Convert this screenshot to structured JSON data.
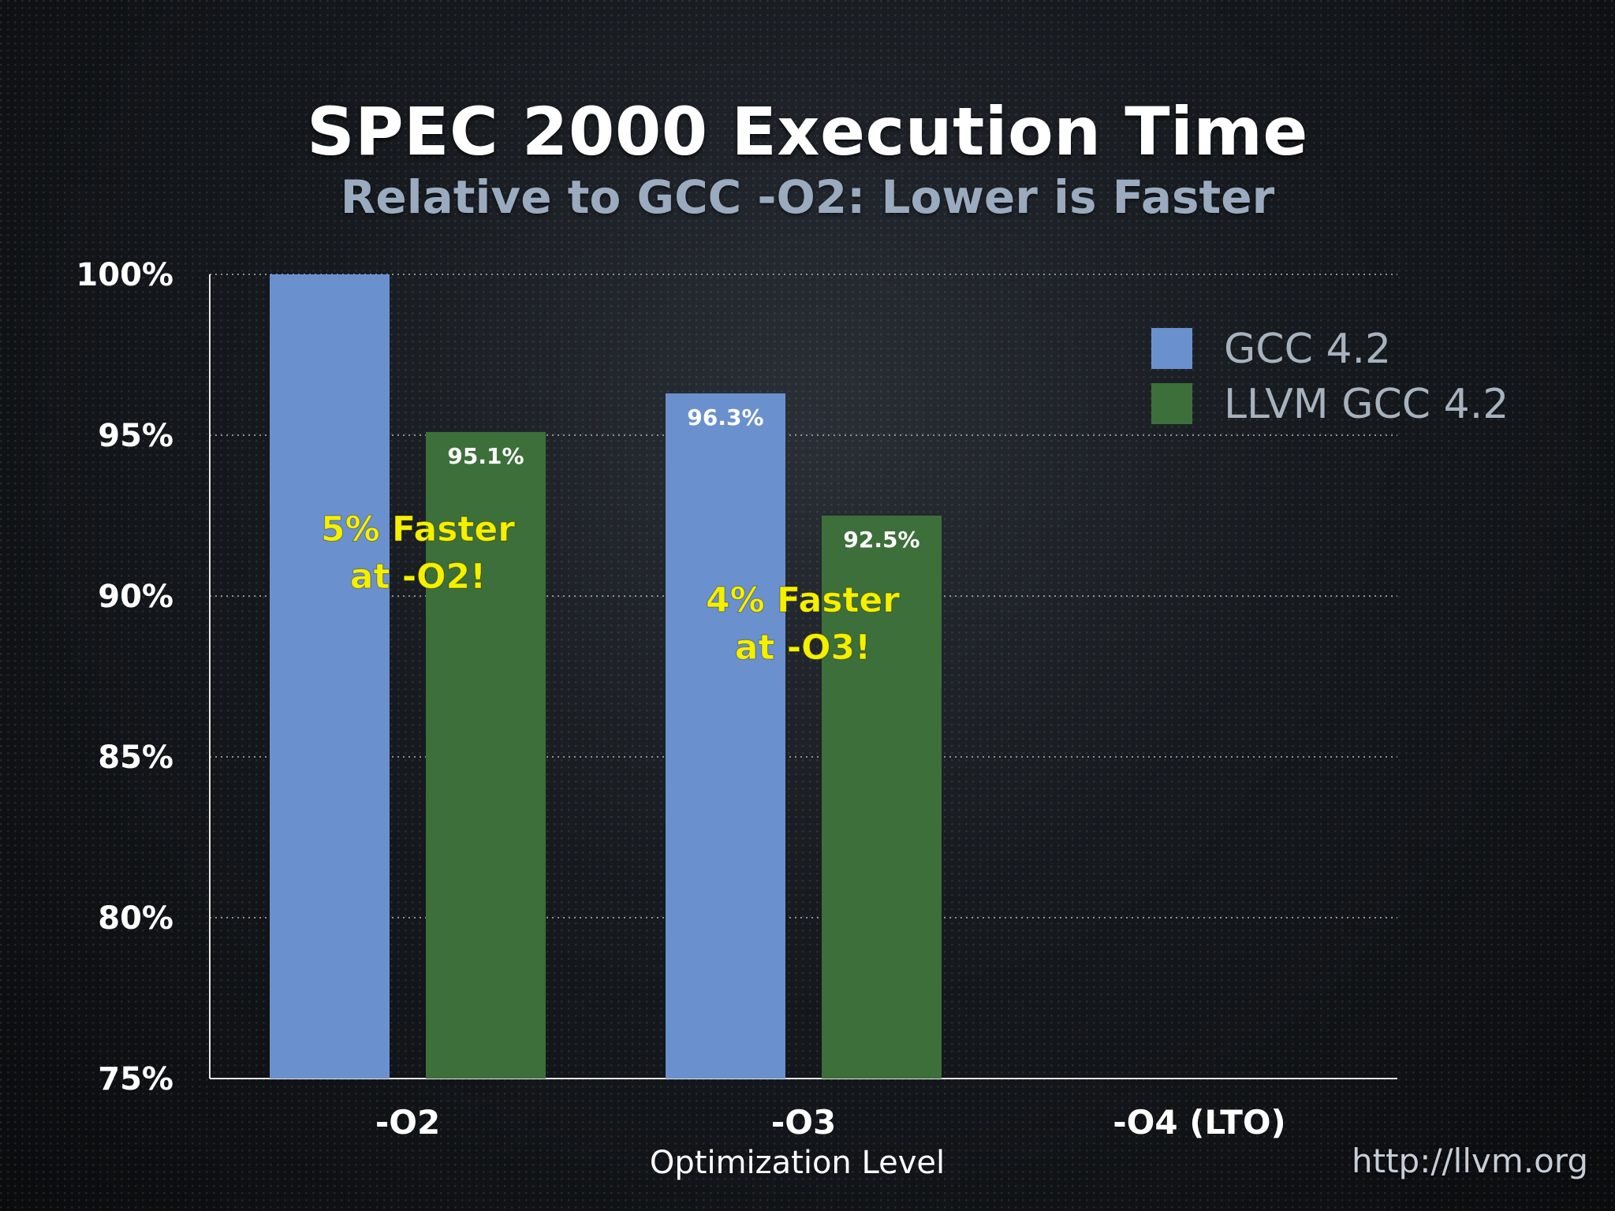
{
  "slide": {
    "title": "SPEC 2000 Execution Time",
    "subtitle": "Relative to GCC -O2: Lower is Faster",
    "footer_url": "http://llvm.org"
  },
  "chart_data": {
    "type": "bar",
    "title": "SPEC 2000 Execution Time",
    "subtitle": "Relative to GCC -O2: Lower is Faster",
    "xlabel": "Optimization Level",
    "ylabel": "",
    "categories": [
      "-O2",
      "-O3",
      "-O4 (LTO)"
    ],
    "series": [
      {
        "name": "GCC 4.2",
        "color": "#6a91cd",
        "values": [
          100,
          96.3,
          null
        ],
        "data_labels": [
          null,
          "96.3%",
          null
        ]
      },
      {
        "name": "LLVM GCC 4.2",
        "color": "#3d6f3a",
        "values": [
          95.1,
          92.5,
          null
        ],
        "data_labels": [
          "95.1%",
          "92.5%",
          null
        ]
      }
    ],
    "ylim": [
      75,
      100
    ],
    "yticks": [
      75,
      80,
      85,
      90,
      95,
      100
    ],
    "ytick_labels": [
      "75%",
      "80%",
      "85%",
      "90%",
      "95%",
      "100%"
    ],
    "grid": true,
    "legend_position": "top-right",
    "annotations": [
      {
        "category": "-O2",
        "lines": [
          "5% Faster",
          "at -O2!"
        ],
        "color": "#f5f000"
      },
      {
        "category": "-O3",
        "lines": [
          "4% Faster",
          "at -O3!"
        ],
        "color": "#f5f000"
      }
    ]
  }
}
